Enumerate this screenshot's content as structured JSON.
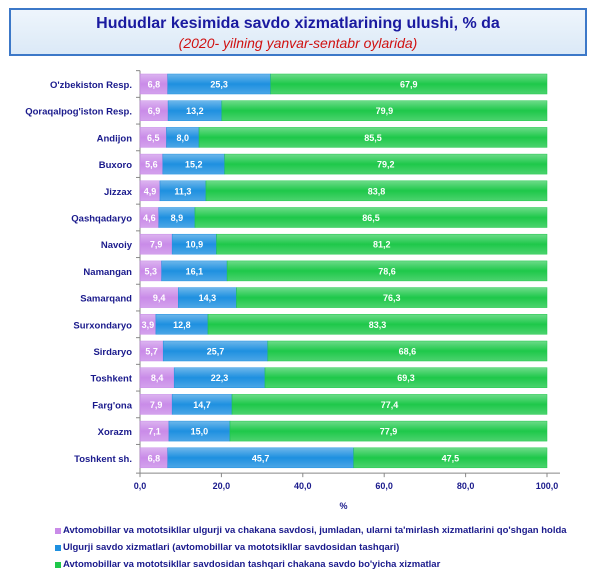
{
  "chart_data": {
    "type": "bar",
    "stacked": true,
    "orientation": "horizontal",
    "title": "Hududlar kesimida savdo xizmatlarining ulushi, % da",
    "subtitle": "(2020- yilning yanvar-sentabr oylarida)",
    "xlabel": "%",
    "xlim": [
      0,
      100
    ],
    "xticks": [
      "0,0",
      "20,0",
      "40,0",
      "60,0",
      "80,0",
      "100,0"
    ],
    "categories": [
      "O'zbekiston Resp.",
      "Qoraqalpog'iston Resp.",
      "Andijon",
      "Buxoro",
      "Jizzax",
      "Qashqadaryo",
      "Navoiy",
      "Namangan",
      "Samarqand",
      "Surxondaryo",
      "Sirdaryo",
      "Toshkent",
      "Farg'ona",
      "Xorazm",
      "Toshkent sh."
    ],
    "series": [
      {
        "name": "Avtomobillar va mototsikllar ulgurji va chakana savdosi, jumladan, ularni ta'mirlash xizmatlarini qo'shgan holda",
        "color": "#c98be8",
        "values": [
          6.8,
          6.9,
          6.5,
          5.6,
          4.9,
          4.6,
          7.9,
          5.3,
          9.4,
          3.9,
          5.7,
          8.4,
          7.9,
          7.1,
          6.8
        ]
      },
      {
        "name": "Ulgurji savdo xizmatlari (avtomobillar va mototsikllar savdosidan tashqari)",
        "color": "#1e90e0",
        "values": [
          25.3,
          13.2,
          8.0,
          15.2,
          11.3,
          8.9,
          10.9,
          16.1,
          14.3,
          12.8,
          25.7,
          22.3,
          14.7,
          15.0,
          45.7
        ]
      },
      {
        "name": "Avtomobillar va mototsikllar savdosidan tashqari chakana savdo bo'yicha  xizmatlar",
        "color": "#1ec84a",
        "values": [
          67.9,
          79.9,
          85.5,
          79.2,
          83.8,
          86.5,
          81.2,
          78.6,
          76.3,
          83.3,
          68.6,
          69.3,
          77.4,
          77.9,
          47.5
        ]
      }
    ]
  }
}
